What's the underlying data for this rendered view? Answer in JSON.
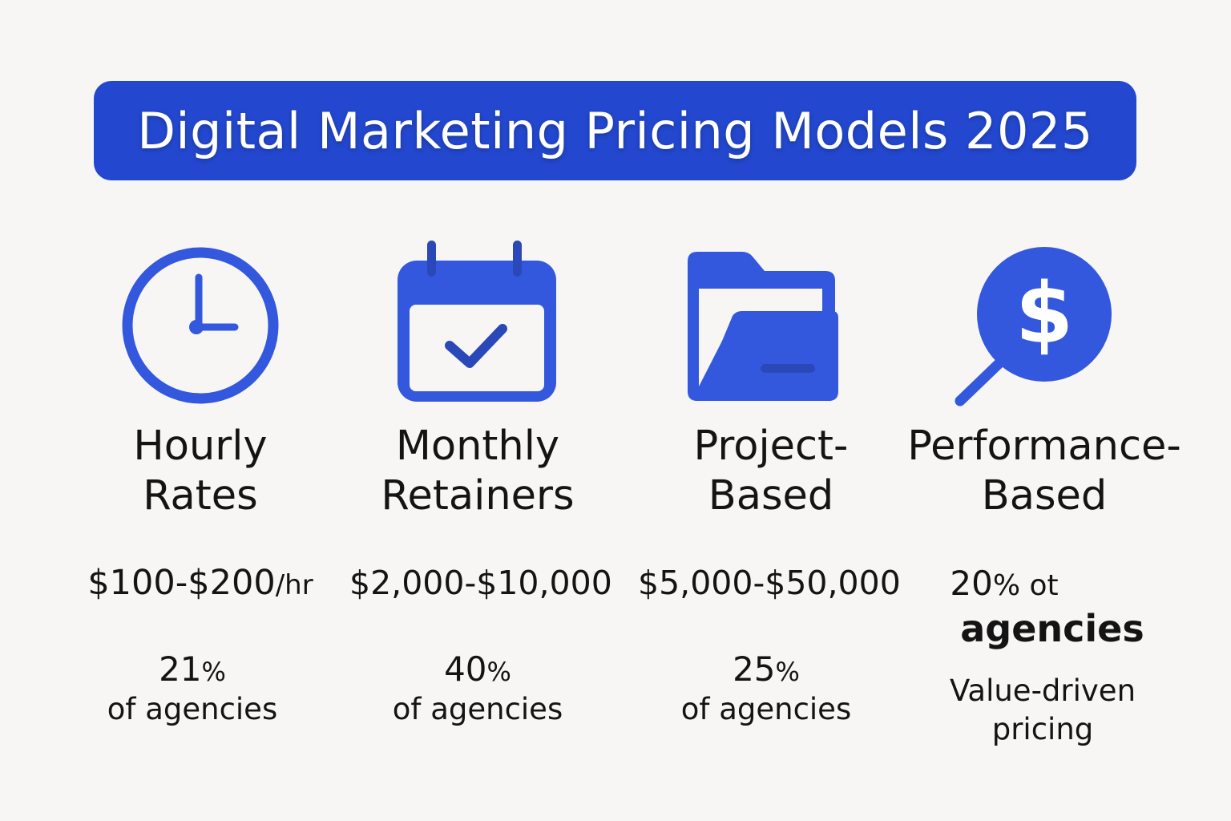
{
  "title": "Digital Marketing Pricing Models 2025",
  "accent_color": "#2348cf",
  "icon_color": "#3358de",
  "models": [
    {
      "icon": "clock-icon",
      "name_line1": "Hourly",
      "name_line2": "Rates",
      "price": "$100-$200",
      "price_unit": "/hr",
      "share_number": "21",
      "share_percent": "%",
      "share_label": "of agencies"
    },
    {
      "icon": "calendar-check-icon",
      "name_line1": "Monthly",
      "name_line2": "Retainers",
      "price": "$2,000-$10,000",
      "share_number": "40",
      "share_percent": "%",
      "share_label": "of agencies"
    },
    {
      "icon": "folder-icon",
      "name_line1": "Project-",
      "name_line2": "Based",
      "price": "$5,000-$50,000",
      "share_number": "25",
      "share_percent": "%",
      "share_label": "of agencies"
    },
    {
      "icon": "dollar-magnifier-icon",
      "name_line1": "Performance-",
      "name_line2": "Based",
      "share_number": "20",
      "share_suffix": "% ot",
      "share_label": "agencies",
      "note_line1": "Value-driven",
      "note_line2": "pricing"
    }
  ]
}
